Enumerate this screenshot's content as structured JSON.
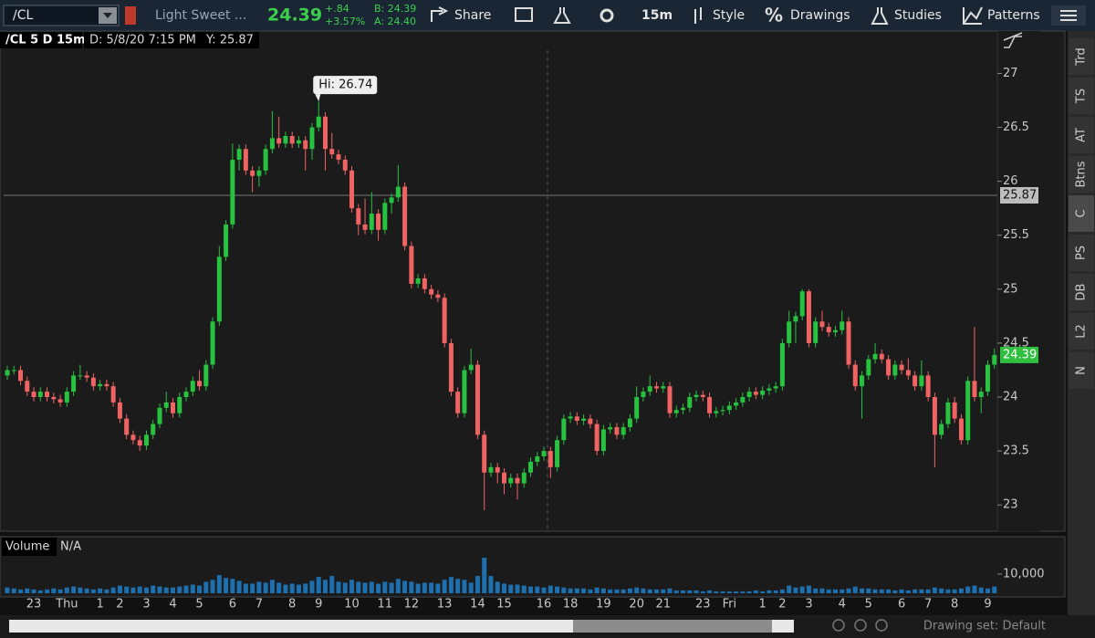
{
  "toolbar": {
    "symbol": "/CL",
    "description": "Light Sweet ...",
    "last": "24.39",
    "change": "+.84",
    "change_pct": "+3.57%",
    "bid": "B: 24.39",
    "ask": "A: 24.40",
    "share": "Share",
    "interval": "15m",
    "style": "Style",
    "drawings": "Drawings",
    "studies": "Studies",
    "patterns": "Patterns"
  },
  "chart_header": {
    "symbol": "/CL 5 D 15m",
    "date": "D: 5/8/20 7:15 PM",
    "cursor": "Y: 25.87"
  },
  "chart_data": {
    "type": "candlestick",
    "up_color": "#27c23f",
    "down_color": "#f06363",
    "ylim": [
      22.79,
      27.3
    ],
    "yticks": [
      23,
      23.5,
      24,
      24.5,
      25,
      25.5,
      26,
      26.5,
      27
    ],
    "crosshair": 25.87,
    "last_price": 24.39,
    "hi_label": "Hi: 26.74",
    "candles": [
      [
        24.2,
        24.29,
        24.16,
        24.25
      ],
      [
        24.25,
        24.29,
        24.21,
        24.25
      ],
      [
        24.25,
        24.29,
        24.11,
        24.15
      ],
      [
        24.15,
        24.19,
        24.01,
        24.05
      ],
      [
        24.05,
        24.09,
        23.96,
        24.0
      ],
      [
        24.0,
        24.09,
        23.96,
        24.05
      ],
      [
        24.05,
        24.09,
        23.96,
        24.0
      ],
      [
        24.0,
        24.04,
        23.94,
        23.98
      ],
      [
        23.98,
        24.02,
        23.91,
        23.95
      ],
      [
        23.95,
        24.09,
        23.91,
        24.05
      ],
      [
        24.05,
        24.24,
        24.01,
        24.2
      ],
      [
        24.2,
        24.3,
        24.16,
        24.2
      ],
      [
        24.2,
        24.24,
        24.14,
        24.18
      ],
      [
        24.18,
        24.22,
        24.06,
        24.1
      ],
      [
        24.1,
        24.16,
        24.06,
        24.12
      ],
      [
        24.12,
        24.16,
        24.06,
        24.1
      ],
      [
        24.1,
        24.14,
        23.91,
        23.95
      ],
      [
        23.95,
        23.99,
        23.76,
        23.8
      ],
      [
        23.8,
        23.84,
        23.61,
        23.65
      ],
      [
        23.65,
        23.69,
        23.56,
        23.6
      ],
      [
        23.6,
        23.64,
        23.5,
        23.55
      ],
      [
        23.55,
        23.69,
        23.51,
        23.65
      ],
      [
        23.65,
        23.79,
        23.61,
        23.75
      ],
      [
        23.75,
        23.94,
        23.71,
        23.9
      ],
      [
        23.9,
        24.05,
        23.86,
        23.95
      ],
      [
        23.95,
        23.99,
        23.81,
        23.85
      ],
      [
        23.85,
        24.04,
        23.81,
        24.0
      ],
      [
        24.0,
        24.09,
        23.96,
        24.05
      ],
      [
        24.05,
        24.19,
        24.01,
        24.15
      ],
      [
        24.15,
        24.25,
        24.06,
        24.1
      ],
      [
        24.1,
        24.34,
        24.06,
        24.3
      ],
      [
        24.3,
        24.74,
        24.26,
        24.7
      ],
      [
        24.7,
        25.4,
        24.66,
        25.3
      ],
      [
        25.3,
        25.64,
        25.26,
        25.6
      ],
      [
        25.6,
        26.35,
        25.56,
        26.2
      ],
      [
        26.2,
        26.34,
        26.1,
        26.3
      ],
      [
        26.3,
        26.34,
        26.06,
        26.1
      ],
      [
        26.1,
        26.14,
        25.9,
        26.05
      ],
      [
        26.05,
        26.14,
        25.95,
        26.1
      ],
      [
        26.1,
        26.34,
        26.06,
        26.3
      ],
      [
        26.3,
        26.65,
        26.26,
        26.4
      ],
      [
        26.4,
        26.6,
        26.31,
        26.35
      ],
      [
        26.35,
        26.46,
        26.31,
        26.42
      ],
      [
        26.42,
        26.46,
        26.31,
        26.35
      ],
      [
        26.35,
        26.42,
        26.31,
        26.38
      ],
      [
        26.38,
        26.42,
        26.1,
        26.3
      ],
      [
        26.3,
        26.54,
        26.2,
        26.5
      ],
      [
        26.5,
        26.74,
        26.46,
        26.6
      ],
      [
        26.6,
        26.64,
        26.1,
        26.3
      ],
      [
        26.3,
        26.45,
        26.21,
        26.25
      ],
      [
        26.25,
        26.29,
        26.16,
        26.2
      ],
      [
        26.2,
        26.24,
        26.06,
        26.1
      ],
      [
        26.1,
        26.14,
        25.71,
        25.75
      ],
      [
        25.75,
        25.79,
        25.5,
        25.6
      ],
      [
        25.6,
        25.84,
        25.51,
        25.55
      ],
      [
        25.55,
        25.9,
        25.51,
        25.7
      ],
      [
        25.7,
        25.74,
        25.45,
        25.55
      ],
      [
        25.55,
        25.84,
        25.51,
        25.8
      ],
      [
        25.8,
        25.89,
        25.7,
        25.85
      ],
      [
        25.85,
        26.15,
        25.81,
        25.95
      ],
      [
        25.95,
        25.99,
        25.36,
        25.4
      ],
      [
        25.4,
        25.44,
        25.01,
        25.05
      ],
      [
        25.05,
        25.14,
        25.01,
        25.1
      ],
      [
        25.1,
        25.14,
        24.96,
        25.0
      ],
      [
        25.0,
        25.04,
        24.91,
        24.95
      ],
      [
        24.95,
        24.99,
        24.88,
        24.92
      ],
      [
        24.92,
        24.96,
        24.46,
        24.5
      ],
      [
        24.5,
        24.54,
        24.01,
        24.05
      ],
      [
        24.05,
        24.09,
        23.81,
        23.85
      ],
      [
        23.85,
        24.29,
        23.81,
        24.25
      ],
      [
        24.25,
        24.45,
        24.21,
        24.3
      ],
      [
        24.3,
        24.34,
        23.61,
        23.65
      ],
      [
        23.65,
        23.69,
        22.95,
        23.3
      ],
      [
        23.3,
        23.39,
        23.26,
        23.35
      ],
      [
        23.35,
        23.39,
        23.2,
        23.3
      ],
      [
        23.3,
        23.34,
        23.1,
        23.2
      ],
      [
        23.2,
        23.29,
        23.16,
        23.25
      ],
      [
        23.25,
        23.29,
        23.05,
        23.2
      ],
      [
        23.2,
        23.34,
        23.16,
        23.3
      ],
      [
        23.3,
        23.44,
        23.26,
        23.4
      ],
      [
        23.4,
        23.49,
        23.36,
        23.45
      ],
      [
        23.45,
        23.54,
        23.41,
        23.5
      ],
      [
        23.5,
        23.54,
        23.25,
        23.35
      ],
      [
        23.35,
        23.64,
        23.31,
        23.6
      ],
      [
        23.6,
        23.84,
        23.56,
        23.8
      ],
      [
        23.8,
        23.86,
        23.76,
        23.82
      ],
      [
        23.82,
        23.86,
        23.74,
        23.78
      ],
      [
        23.78,
        23.84,
        23.74,
        23.8
      ],
      [
        23.8,
        23.84,
        23.71,
        23.75
      ],
      [
        23.75,
        23.79,
        23.46,
        23.5
      ],
      [
        23.5,
        23.74,
        23.46,
        23.7
      ],
      [
        23.7,
        23.76,
        23.66,
        23.72
      ],
      [
        23.72,
        23.76,
        23.61,
        23.65
      ],
      [
        23.65,
        23.76,
        23.61,
        23.72
      ],
      [
        23.72,
        23.84,
        23.68,
        23.8
      ],
      [
        23.8,
        24.1,
        23.76,
        24.0
      ],
      [
        24.0,
        24.09,
        23.96,
        24.05
      ],
      [
        24.05,
        24.2,
        24.01,
        24.1
      ],
      [
        24.1,
        24.14,
        24.04,
        24.08
      ],
      [
        24.08,
        24.14,
        24.04,
        24.1
      ],
      [
        24.1,
        24.14,
        23.81,
        23.85
      ],
      [
        23.85,
        23.92,
        23.81,
        23.88
      ],
      [
        23.88,
        23.94,
        23.84,
        23.9
      ],
      [
        23.9,
        24.04,
        23.86,
        24.0
      ],
      [
        24.0,
        24.06,
        23.96,
        24.02
      ],
      [
        24.02,
        24.06,
        23.96,
        24.0
      ],
      [
        24.0,
        24.04,
        23.81,
        23.85
      ],
      [
        23.85,
        23.91,
        23.81,
        23.87
      ],
      [
        23.87,
        23.92,
        23.83,
        23.88
      ],
      [
        23.88,
        23.96,
        23.84,
        23.92
      ],
      [
        23.92,
        23.99,
        23.88,
        23.95
      ],
      [
        23.95,
        24.04,
        23.91,
        24.0
      ],
      [
        24.0,
        24.09,
        23.96,
        24.05
      ],
      [
        24.05,
        24.09,
        23.98,
        24.02
      ],
      [
        24.02,
        24.1,
        23.98,
        24.06
      ],
      [
        24.06,
        24.12,
        24.02,
        24.08
      ],
      [
        24.08,
        24.14,
        24.04,
        24.1
      ],
      [
        24.1,
        24.54,
        24.06,
        24.5
      ],
      [
        24.5,
        24.8,
        24.46,
        24.7
      ],
      [
        24.7,
        24.79,
        24.5,
        24.75
      ],
      [
        24.75,
        25.0,
        24.71,
        24.98
      ],
      [
        24.98,
        25.0,
        24.46,
        24.5
      ],
      [
        24.5,
        24.74,
        24.46,
        24.7
      ],
      [
        24.7,
        24.8,
        24.61,
        24.65
      ],
      [
        24.65,
        24.69,
        24.56,
        24.6
      ],
      [
        24.6,
        24.66,
        24.56,
        24.62
      ],
      [
        24.62,
        24.8,
        24.58,
        24.7
      ],
      [
        24.7,
        24.74,
        24.26,
        24.3
      ],
      [
        24.3,
        24.34,
        24.06,
        24.1
      ],
      [
        24.1,
        24.24,
        23.8,
        24.2
      ],
      [
        24.2,
        24.39,
        24.16,
        24.35
      ],
      [
        24.35,
        24.5,
        24.31,
        24.4
      ],
      [
        24.4,
        24.44,
        24.31,
        24.35
      ],
      [
        24.35,
        24.39,
        24.16,
        24.2
      ],
      [
        24.2,
        24.34,
        24.16,
        24.3
      ],
      [
        24.3,
        24.34,
        24.21,
        24.25
      ],
      [
        24.25,
        24.36,
        24.16,
        24.2
      ],
      [
        24.2,
        24.24,
        24.06,
        24.1
      ],
      [
        24.1,
        24.34,
        24.06,
        24.2
      ],
      [
        24.2,
        24.24,
        23.96,
        24.0
      ],
      [
        24.0,
        24.04,
        23.35,
        23.65
      ],
      [
        23.65,
        23.79,
        23.61,
        23.75
      ],
      [
        23.75,
        23.99,
        23.71,
        23.95
      ],
      [
        23.95,
        24.0,
        23.76,
        23.8
      ],
      [
        23.8,
        23.84,
        23.56,
        23.6
      ],
      [
        23.6,
        24.19,
        23.56,
        24.15
      ],
      [
        24.15,
        24.65,
        23.96,
        24.0
      ],
      [
        24.0,
        24.09,
        23.85,
        24.05
      ],
      [
        24.05,
        24.34,
        24.01,
        24.3
      ],
      [
        24.3,
        24.45,
        24.26,
        24.39
      ]
    ],
    "x_labels": [
      {
        "at": 4,
        "label": "23"
      },
      {
        "at": 9,
        "label": "Thu"
      },
      {
        "at": 14,
        "label": "1"
      },
      {
        "at": 17,
        "label": "2"
      },
      {
        "at": 21,
        "label": "3"
      },
      {
        "at": 25,
        "label": "4"
      },
      {
        "at": 29,
        "label": "5"
      },
      {
        "at": 34,
        "label": "6"
      },
      {
        "at": 38,
        "label": "7"
      },
      {
        "at": 43,
        "label": "8"
      },
      {
        "at": 47,
        "label": "9"
      },
      {
        "at": 52,
        "label": "10"
      },
      {
        "at": 57,
        "label": "11"
      },
      {
        "at": 61,
        "label": "12"
      },
      {
        "at": 66,
        "label": "13"
      },
      {
        "at": 71,
        "label": "14"
      },
      {
        "at": 75,
        "label": "15"
      },
      {
        "at": 81,
        "label": "16"
      },
      {
        "at": 85,
        "label": "18"
      },
      {
        "at": 90,
        "label": "19"
      },
      {
        "at": 95,
        "label": "20"
      },
      {
        "at": 99,
        "label": "21"
      },
      {
        "at": 105,
        "label": "23"
      },
      {
        "at": 109,
        "label": "Fri"
      },
      {
        "at": 114,
        "label": "1"
      },
      {
        "at": 117,
        "label": "2"
      },
      {
        "at": 121,
        "label": "3"
      },
      {
        "at": 126,
        "label": "4"
      },
      {
        "at": 130,
        "label": "5"
      },
      {
        "at": 135,
        "label": "6"
      },
      {
        "at": 139,
        "label": "7"
      },
      {
        "at": 143,
        "label": "8"
      },
      {
        "at": 148,
        "label": "9"
      }
    ],
    "volume": {
      "title": "Volume",
      "status": "N/A",
      "color": "#1d6fae",
      "ylim": [
        0,
        19000
      ],
      "yticks": [
        {
          "value": 10000,
          "label": "10,000"
        }
      ],
      "values": [
        3000,
        2500,
        2000,
        2500,
        2000,
        1500,
        2000,
        2500,
        2000,
        3000,
        3500,
        3000,
        2500,
        2000,
        2500,
        2000,
        3000,
        4000,
        3500,
        3000,
        3500,
        3000,
        4000,
        3500,
        3000,
        3000,
        3500,
        4000,
        4500,
        4000,
        6000,
        7000,
        9500,
        8000,
        7500,
        6500,
        5000,
        5000,
        6000,
        5500,
        7000,
        5500,
        4500,
        5000,
        4500,
        5000,
        6500,
        8500,
        7000,
        9000,
        6000,
        5500,
        7000,
        6000,
        5500,
        6000,
        5000,
        6000,
        5500,
        7500,
        6500,
        6000,
        5000,
        5500,
        5500,
        5000,
        7000,
        8500,
        7500,
        7000,
        5500,
        9000,
        18500,
        9000,
        6000,
        5000,
        4500,
        4500,
        4000,
        3500,
        3500,
        3000,
        4000,
        3500,
        3000,
        2500,
        2500,
        2500,
        2000,
        3000,
        2500,
        2000,
        2000,
        2000,
        2500,
        3000,
        2500,
        2000,
        2000,
        2000,
        2500,
        1500,
        1500,
        1500,
        1500,
        1000,
        1500,
        1000,
        1000,
        1000,
        1000,
        1000,
        1000,
        1500,
        1000,
        1500,
        1500,
        2000,
        4000,
        3000,
        3500,
        4000,
        2500,
        2500,
        2000,
        2000,
        2000,
        2500,
        3500,
        2500,
        2500,
        2000,
        2000,
        2000,
        1500,
        2000,
        1500,
        2000,
        2000,
        2000,
        3000,
        2500,
        2000,
        2000,
        2500,
        3500,
        4000,
        3000,
        2500,
        3500
      ]
    }
  },
  "side_tabs": [
    "Trd",
    "TS",
    "AT",
    "Btns",
    "C",
    "PS",
    "DB",
    "L2",
    "N"
  ],
  "footer": {
    "drawing_set": "Drawing set: Default"
  }
}
